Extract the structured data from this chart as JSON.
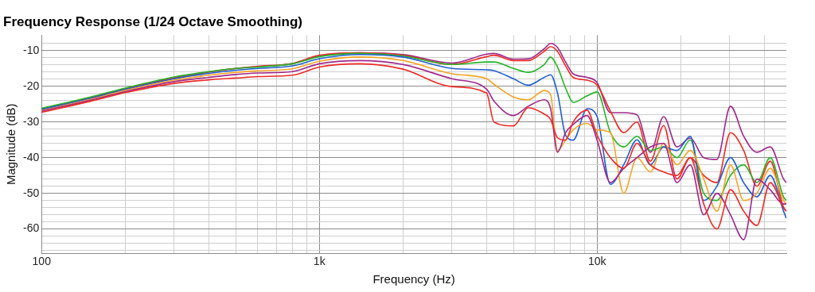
{
  "chart_data": {
    "type": "line",
    "title": "Frequency Response (1/24 Octave Smoothing)",
    "xlabel": "Frequency (Hz)",
    "ylabel": "Magnitude (dB)",
    "log": "x",
    "grid": true,
    "legend": false,
    "marker": "none",
    "line_style": "solid",
    "x": [
      100,
      150,
      200,
      300,
      400,
      500,
      600,
      800,
      1000,
      1400,
      2000,
      3000,
      4000,
      4250,
      5000,
      5650,
      6450,
      6800,
      7200,
      7700,
      8200,
      9200,
      10000,
      11170,
      12470,
      13920,
      15550,
      17360,
      19390,
      21650,
      24200,
      27000,
      30200,
      33700,
      37600,
      42000,
      46900,
      48000
    ],
    "xlim": [
      100,
      48000
    ],
    "xticks": [
      100,
      {
        "value": 200,
        "label": null
      },
      {
        "value": 300,
        "label": null
      },
      {
        "value": 400,
        "label": null
      },
      {
        "value": 500,
        "label": null
      },
      {
        "value": 600,
        "label": null
      },
      {
        "value": 700,
        "label": null
      },
      {
        "value": 800,
        "label": null
      },
      {
        "value": 900,
        "label": null
      },
      {
        "value": 1000,
        "label": "1k"
      },
      {
        "value": 2000,
        "label": null
      },
      {
        "value": 3000,
        "label": null
      },
      {
        "value": 4000,
        "label": null
      },
      {
        "value": 5000,
        "label": null
      },
      {
        "value": 6000,
        "label": null
      },
      {
        "value": 7000,
        "label": null
      },
      {
        "value": 8000,
        "label": null
      },
      {
        "value": 9000,
        "label": null
      },
      {
        "value": 10000,
        "label": "10k"
      },
      {
        "value": 20000,
        "label": null
      },
      {
        "value": 30000,
        "label": null
      },
      {
        "value": 40000,
        "label": null
      }
    ],
    "ylim": [
      -66.8,
      -5.7
    ],
    "yticks": [
      {
        "value": -8,
        "label": null
      },
      -10,
      {
        "value": -12,
        "label": null
      },
      {
        "value": -14,
        "label": null
      },
      {
        "value": -16,
        "label": null
      },
      {
        "value": -18,
        "label": null
      },
      -20,
      {
        "value": -22,
        "label": null
      },
      {
        "value": -24,
        "label": null
      },
      {
        "value": -26,
        "label": null
      },
      {
        "value": -28,
        "label": null
      },
      -30,
      {
        "value": -32,
        "label": null
      },
      {
        "value": -34,
        "label": null
      },
      {
        "value": -36,
        "label": null
      },
      {
        "value": -38,
        "label": null
      },
      -40,
      {
        "value": -42,
        "label": null
      },
      {
        "value": -44,
        "label": null
      },
      {
        "value": -46,
        "label": null
      },
      {
        "value": -48,
        "label": null
      },
      -50,
      {
        "value": -52,
        "label": null
      },
      {
        "value": -54,
        "label": null
      },
      {
        "value": -56,
        "label": null
      },
      {
        "value": -58,
        "label": null
      },
      -60,
      {
        "value": -62,
        "label": null
      },
      {
        "value": -64,
        "label": null
      },
      {
        "value": -66,
        "label": null
      }
    ],
    "series": [
      {
        "color": "#ee2a24",
        "values": [
          -27.3,
          -24.2,
          -21.8,
          -19.2,
          -18.2,
          -17.7,
          -17.3,
          -16.9,
          -14.6,
          -13.7,
          -15.2,
          -20.1,
          -21.9,
          -30.0,
          -31.1,
          -26.0,
          -27.8,
          -29.3,
          -34.4,
          -35.1,
          -30.0,
          -26.7,
          -33.7,
          -40,
          -43,
          -36,
          -42,
          -44,
          -45,
          -40,
          -53,
          -60,
          -49,
          -55,
          -59,
          -47,
          -54,
          -55
        ]
      },
      {
        "color": "#a0288c",
        "values": [
          -27.0,
          -23.9,
          -21.5,
          -18.7,
          -17.5,
          -16.7,
          -16.3,
          -15.9,
          -13.7,
          -12.8,
          -13.9,
          -17.9,
          -20.8,
          -24.1,
          -28.2,
          -25.6,
          -23.8,
          -26.3,
          -38.5,
          -33.0,
          -30.7,
          -28.2,
          -35.1,
          -47,
          -43,
          -40,
          -37,
          -36,
          -47,
          -42,
          -56,
          -50,
          -56,
          -63,
          -46,
          -49,
          -53,
          -53
        ]
      },
      {
        "color": "#f9a326",
        "values": [
          -26.8,
          -23.7,
          -21.2,
          -18.3,
          -16.9,
          -16.1,
          -15.7,
          -15.1,
          -13.0,
          -11.8,
          -12.8,
          -16.5,
          -17.9,
          -19.4,
          -23.0,
          -23.8,
          -21.2,
          -22.3,
          -38.0,
          -35.1,
          -32.2,
          -30.4,
          -32.2,
          -33,
          -50,
          -40,
          -44,
          -36,
          -42,
          -38,
          -46,
          -55,
          -42,
          -52,
          -50,
          -43,
          -52,
          -53
        ]
      },
      {
        "color": "#1f5fd0",
        "values": [
          -26.5,
          -23.4,
          -20.9,
          -17.9,
          -16.4,
          -15.5,
          -15.0,
          -14.3,
          -12.3,
          -11.1,
          -11.8,
          -15.0,
          -15.4,
          -15.6,
          -17.9,
          -19.7,
          -17.5,
          -16.8,
          -21.9,
          -33.7,
          -35.1,
          -26.3,
          -28.5,
          -47.5,
          -42,
          -35,
          -42,
          -37,
          -38,
          -34,
          -52,
          -48,
          -40,
          -47,
          -51,
          -45,
          -55,
          -57
        ]
      },
      {
        "color": "#25b525",
        "values": [
          -26.2,
          -23.0,
          -20.5,
          -17.4,
          -15.9,
          -15.0,
          -14.6,
          -13.7,
          -11.7,
          -10.8,
          -11.5,
          -13.9,
          -13.2,
          -13.2,
          -15.0,
          -16.1,
          -13.9,
          -11.8,
          -14.6,
          -20.5,
          -24.5,
          -22.7,
          -21.6,
          -33,
          -37,
          -34,
          -38,
          -37,
          -40,
          -35,
          -50,
          -52,
          -45,
          -42,
          -47,
          -40,
          -51,
          -52
        ]
      },
      {
        "color": "#ee2a24",
        "values": [
          -26.5,
          -23.3,
          -20.8,
          -17.7,
          -16.0,
          -15.0,
          -14.4,
          -13.6,
          -11.3,
          -10.6,
          -11.3,
          -13.9,
          -11.7,
          -11.3,
          -12.8,
          -12.8,
          -10.2,
          -8.9,
          -10.2,
          -14.3,
          -17.5,
          -18.3,
          -19.7,
          -27,
          -33,
          -30,
          -41,
          -31,
          -46,
          -40,
          -45,
          -47,
          -33,
          -38,
          -48,
          -41,
          -54,
          -55
        ]
      },
      {
        "color": "#a0288c",
        "values": [
          -26.4,
          -23.2,
          -20.7,
          -17.6,
          -16.0,
          -15.0,
          -14.5,
          -13.7,
          -11.5,
          -10.6,
          -11.1,
          -13.5,
          -11.0,
          -10.8,
          -12.4,
          -12.3,
          -9.5,
          -8.0,
          -9.1,
          -13.2,
          -16.5,
          -17.5,
          -19.0,
          -27.4,
          -27.4,
          -28,
          -38.5,
          -28.5,
          -37,
          -34.5,
          -40,
          -40.5,
          -25.6,
          -34,
          -38.5,
          -37,
          -46,
          -47
        ]
      }
    ]
  }
}
